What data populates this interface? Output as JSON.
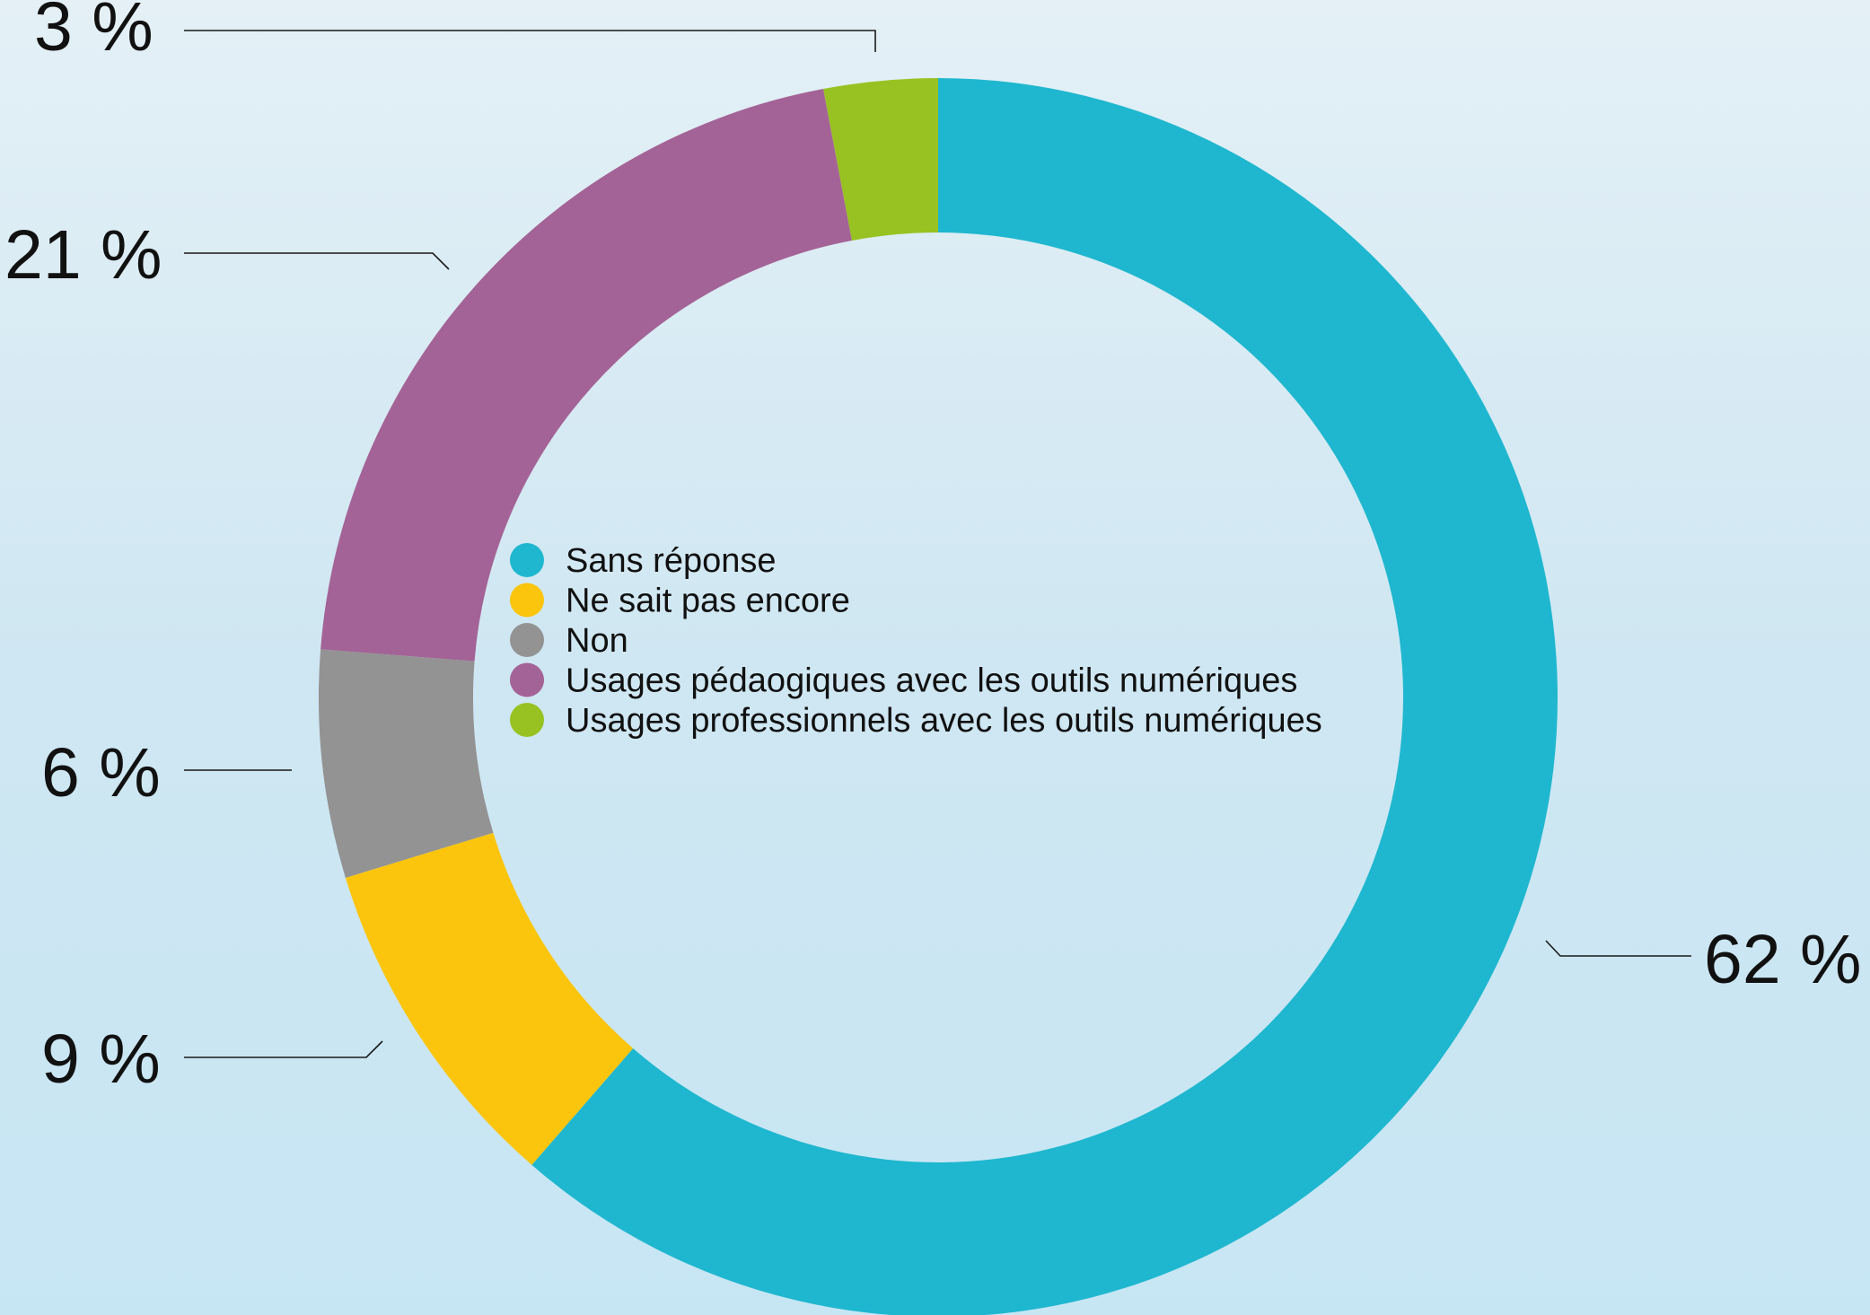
{
  "chart_data": {
    "type": "pie",
    "variant": "donut",
    "title": "",
    "legend_position": "center",
    "slices": [
      {
        "label": "Sans réponse",
        "value": 62,
        "display": "62 %",
        "color": "#1fb7cf"
      },
      {
        "label": "Ne sait pas encore",
        "value": 9,
        "display": "9 %",
        "color": "#fbc50d"
      },
      {
        "label": "Non",
        "value": 6,
        "display": "6 %",
        "color": "#939393"
      },
      {
        "label": "Usages pédaogiques avec les outils numériques",
        "value": 21,
        "display": "21 %",
        "color": "#a46396"
      },
      {
        "label": "Usages professionnels avec les outils numériques",
        "value": 3,
        "display": "3 %",
        "color": "#98c221"
      }
    ]
  }
}
